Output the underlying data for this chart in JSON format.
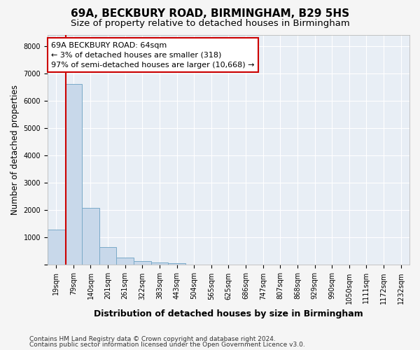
{
  "title1": "69A, BECKBURY ROAD, BIRMINGHAM, B29 5HS",
  "title2": "Size of property relative to detached houses in Birmingham",
  "xlabel": "Distribution of detached houses by size in Birmingham",
  "ylabel": "Number of detached properties",
  "footnote1": "Contains HM Land Registry data © Crown copyright and database right 2024.",
  "footnote2": "Contains public sector information licensed under the Open Government Licence v3.0.",
  "bar_labels": [
    "19sqm",
    "79sqm",
    "140sqm",
    "201sqm",
    "261sqm",
    "322sqm",
    "383sqm",
    "443sqm",
    "504sqm",
    "565sqm",
    "625sqm",
    "686sqm",
    "747sqm",
    "807sqm",
    "868sqm",
    "929sqm",
    "990sqm",
    "1050sqm",
    "1111sqm",
    "1172sqm",
    "1232sqm"
  ],
  "bar_values": [
    1300,
    6600,
    2080,
    650,
    260,
    140,
    100,
    60,
    0,
    0,
    0,
    0,
    0,
    0,
    0,
    0,
    0,
    0,
    0,
    0,
    0
  ],
  "bar_color": "#c8d8ea",
  "bar_edge_color": "#7aaac8",
  "property_line_color": "#cc0000",
  "annotation_line1": "69A BECKBURY ROAD: 64sqm",
  "annotation_line2": "← 3% of detached houses are smaller (318)",
  "annotation_line3": "97% of semi-detached houses are larger (10,668) →",
  "annotation_box_color": "#cc0000",
  "ylim": [
    0,
    8400
  ],
  "yticks": [
    0,
    1000,
    2000,
    3000,
    4000,
    5000,
    6000,
    7000,
    8000
  ],
  "background_color": "#e8eef5",
  "grid_color": "#ffffff",
  "title1_fontsize": 11,
  "title2_fontsize": 9.5,
  "xlabel_fontsize": 9,
  "ylabel_fontsize": 8.5,
  "annotation_fontsize": 8,
  "tick_fontsize": 7,
  "footnote_fontsize": 6.5
}
